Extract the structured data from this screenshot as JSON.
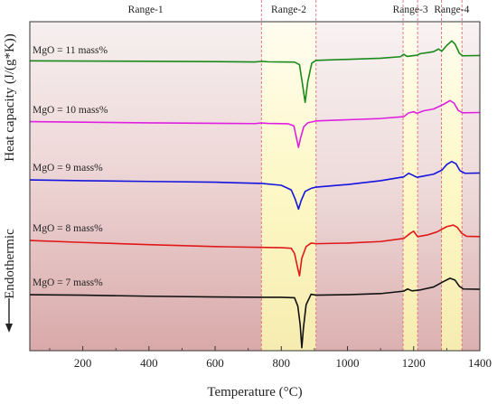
{
  "chart_data": {
    "type": "line",
    "xlabel": "Temperature (°C)",
    "ylabel": "Heat capacity (J/(g*K))",
    "ylabel_side": "Endothermic",
    "xlim": [
      40,
      1400
    ],
    "xticks": [
      200,
      400,
      600,
      800,
      1000,
      1200,
      1400
    ],
    "grid": false,
    "ranges": [
      {
        "label": "Range-1",
        "from": 40,
        "to": 740,
        "fill": "#d8a6a6"
      },
      {
        "label": "Range-2",
        "from": 740,
        "to": 905,
        "fill": "#fcf6ba"
      },
      {
        "label": "Range-3",
        "from": 1168,
        "to": 1212,
        "fill": "#fcf6ba"
      },
      {
        "label": "Range-4",
        "from": 1284,
        "to": 1346,
        "fill": "#fcf6ba"
      }
    ],
    "range_gaps": [
      {
        "from": 905,
        "to": 1168,
        "fill": "#e0b2b2"
      },
      {
        "from": 1212,
        "to": 1284,
        "fill": "#e0b2b2"
      },
      {
        "from": 1346,
        "to": 1400,
        "fill": "#e0b2b2"
      }
    ],
    "series": [
      {
        "name": "MgO = 11 mass%",
        "color": "#1a8a1a",
        "points": [
          [
            40,
            0.45
          ],
          [
            200,
            0.44
          ],
          [
            400,
            0.42
          ],
          [
            600,
            0.4
          ],
          [
            720,
            0.38
          ],
          [
            740,
            0.42
          ],
          [
            760,
            0.39
          ],
          [
            800,
            0.38
          ],
          [
            840,
            0.37
          ],
          [
            855,
            0.2
          ],
          [
            865,
            -1.2
          ],
          [
            872,
            -2.25
          ],
          [
            880,
            -0.9
          ],
          [
            892,
            0.3
          ],
          [
            905,
            0.48
          ],
          [
            1000,
            0.55
          ],
          [
            1100,
            0.62
          ],
          [
            1160,
            0.72
          ],
          [
            1170,
            0.88
          ],
          [
            1180,
            0.74
          ],
          [
            1210,
            0.82
          ],
          [
            1220,
            0.92
          ],
          [
            1240,
            0.98
          ],
          [
            1260,
            1.05
          ],
          [
            1275,
            1.22
          ],
          [
            1285,
            1.08
          ],
          [
            1300,
            1.45
          ],
          [
            1315,
            1.75
          ],
          [
            1325,
            1.55
          ],
          [
            1338,
            0.95
          ],
          [
            1348,
            0.78
          ],
          [
            1400,
            0.8
          ]
        ]
      },
      {
        "name": "MgO = 10 mass%",
        "color": "#e020e0",
        "points": [
          [
            40,
            0.38
          ],
          [
            200,
            0.34
          ],
          [
            400,
            0.3
          ],
          [
            600,
            0.27
          ],
          [
            720,
            0.25
          ],
          [
            740,
            0.29
          ],
          [
            760,
            0.26
          ],
          [
            820,
            0.24
          ],
          [
            838,
            0.1
          ],
          [
            845,
            -0.6
          ],
          [
            852,
            -1.3
          ],
          [
            858,
            -0.7
          ],
          [
            868,
            0.05
          ],
          [
            880,
            0.3
          ],
          [
            905,
            0.42
          ],
          [
            1000,
            0.5
          ],
          [
            1100,
            0.58
          ],
          [
            1170,
            0.7
          ],
          [
            1185,
            0.95
          ],
          [
            1200,
            1.02
          ],
          [
            1210,
            0.92
          ],
          [
            1230,
            1.08
          ],
          [
            1260,
            1.2
          ],
          [
            1290,
            1.5
          ],
          [
            1310,
            1.75
          ],
          [
            1322,
            1.58
          ],
          [
            1335,
            1.1
          ],
          [
            1348,
            0.95
          ],
          [
            1400,
            0.97
          ]
        ]
      },
      {
        "name": "MgO = 9 mass%",
        "color": "#1515dd",
        "points": [
          [
            40,
            0.35
          ],
          [
            200,
            0.3
          ],
          [
            400,
            0.25
          ],
          [
            600,
            0.2
          ],
          [
            740,
            0.12
          ],
          [
            800,
            0.0
          ],
          [
            830,
            -0.3
          ],
          [
            842,
            -0.9
          ],
          [
            852,
            -1.55
          ],
          [
            860,
            -1.0
          ],
          [
            872,
            -0.4
          ],
          [
            890,
            -0.2
          ],
          [
            905,
            -0.12
          ],
          [
            1000,
            0.05
          ],
          [
            1100,
            0.3
          ],
          [
            1170,
            0.55
          ],
          [
            1185,
            0.78
          ],
          [
            1195,
            0.68
          ],
          [
            1210,
            0.52
          ],
          [
            1230,
            0.6
          ],
          [
            1260,
            0.72
          ],
          [
            1285,
            0.98
          ],
          [
            1300,
            1.35
          ],
          [
            1315,
            1.55
          ],
          [
            1328,
            1.4
          ],
          [
            1340,
            0.95
          ],
          [
            1355,
            0.78
          ],
          [
            1400,
            0.8
          ]
        ]
      },
      {
        "name": "MgO = 8 mass%",
        "color": "#e01818",
        "points": [
          [
            40,
            0.35
          ],
          [
            200,
            0.22
          ],
          [
            400,
            0.08
          ],
          [
            600,
            -0.05
          ],
          [
            740,
            -0.1
          ],
          [
            800,
            -0.12
          ],
          [
            830,
            -0.16
          ],
          [
            840,
            -0.5
          ],
          [
            848,
            -1.3
          ],
          [
            855,
            -1.95
          ],
          [
            862,
            -0.8
          ],
          [
            875,
            -0.05
          ],
          [
            890,
            0.18
          ],
          [
            905,
            0.14
          ],
          [
            1000,
            0.18
          ],
          [
            1100,
            0.28
          ],
          [
            1170,
            0.48
          ],
          [
            1190,
            0.82
          ],
          [
            1200,
            0.95
          ],
          [
            1212,
            0.6
          ],
          [
            1240,
            0.7
          ],
          [
            1270,
            0.9
          ],
          [
            1300,
            1.25
          ],
          [
            1320,
            1.35
          ],
          [
            1332,
            1.2
          ],
          [
            1345,
            0.82
          ],
          [
            1360,
            0.62
          ],
          [
            1400,
            0.6
          ]
        ]
      },
      {
        "name": "MgO = 7 mass%",
        "color": "#111111",
        "points": [
          [
            40,
            0.35
          ],
          [
            200,
            0.32
          ],
          [
            400,
            0.25
          ],
          [
            600,
            0.2
          ],
          [
            740,
            0.18
          ],
          [
            800,
            0.18
          ],
          [
            840,
            0.15
          ],
          [
            850,
            -0.4
          ],
          [
            857,
            -1.6
          ],
          [
            862,
            -3.1
          ],
          [
            867,
            -1.8
          ],
          [
            875,
            -0.3
          ],
          [
            890,
            0.38
          ],
          [
            905,
            0.32
          ],
          [
            1000,
            0.35
          ],
          [
            1100,
            0.42
          ],
          [
            1170,
            0.58
          ],
          [
            1182,
            0.72
          ],
          [
            1195,
            0.6
          ],
          [
            1220,
            0.66
          ],
          [
            1260,
            0.85
          ],
          [
            1290,
            1.2
          ],
          [
            1310,
            1.42
          ],
          [
            1325,
            1.3
          ],
          [
            1338,
            0.9
          ],
          [
            1350,
            0.72
          ],
          [
            1400,
            0.7
          ]
        ]
      }
    ]
  }
}
